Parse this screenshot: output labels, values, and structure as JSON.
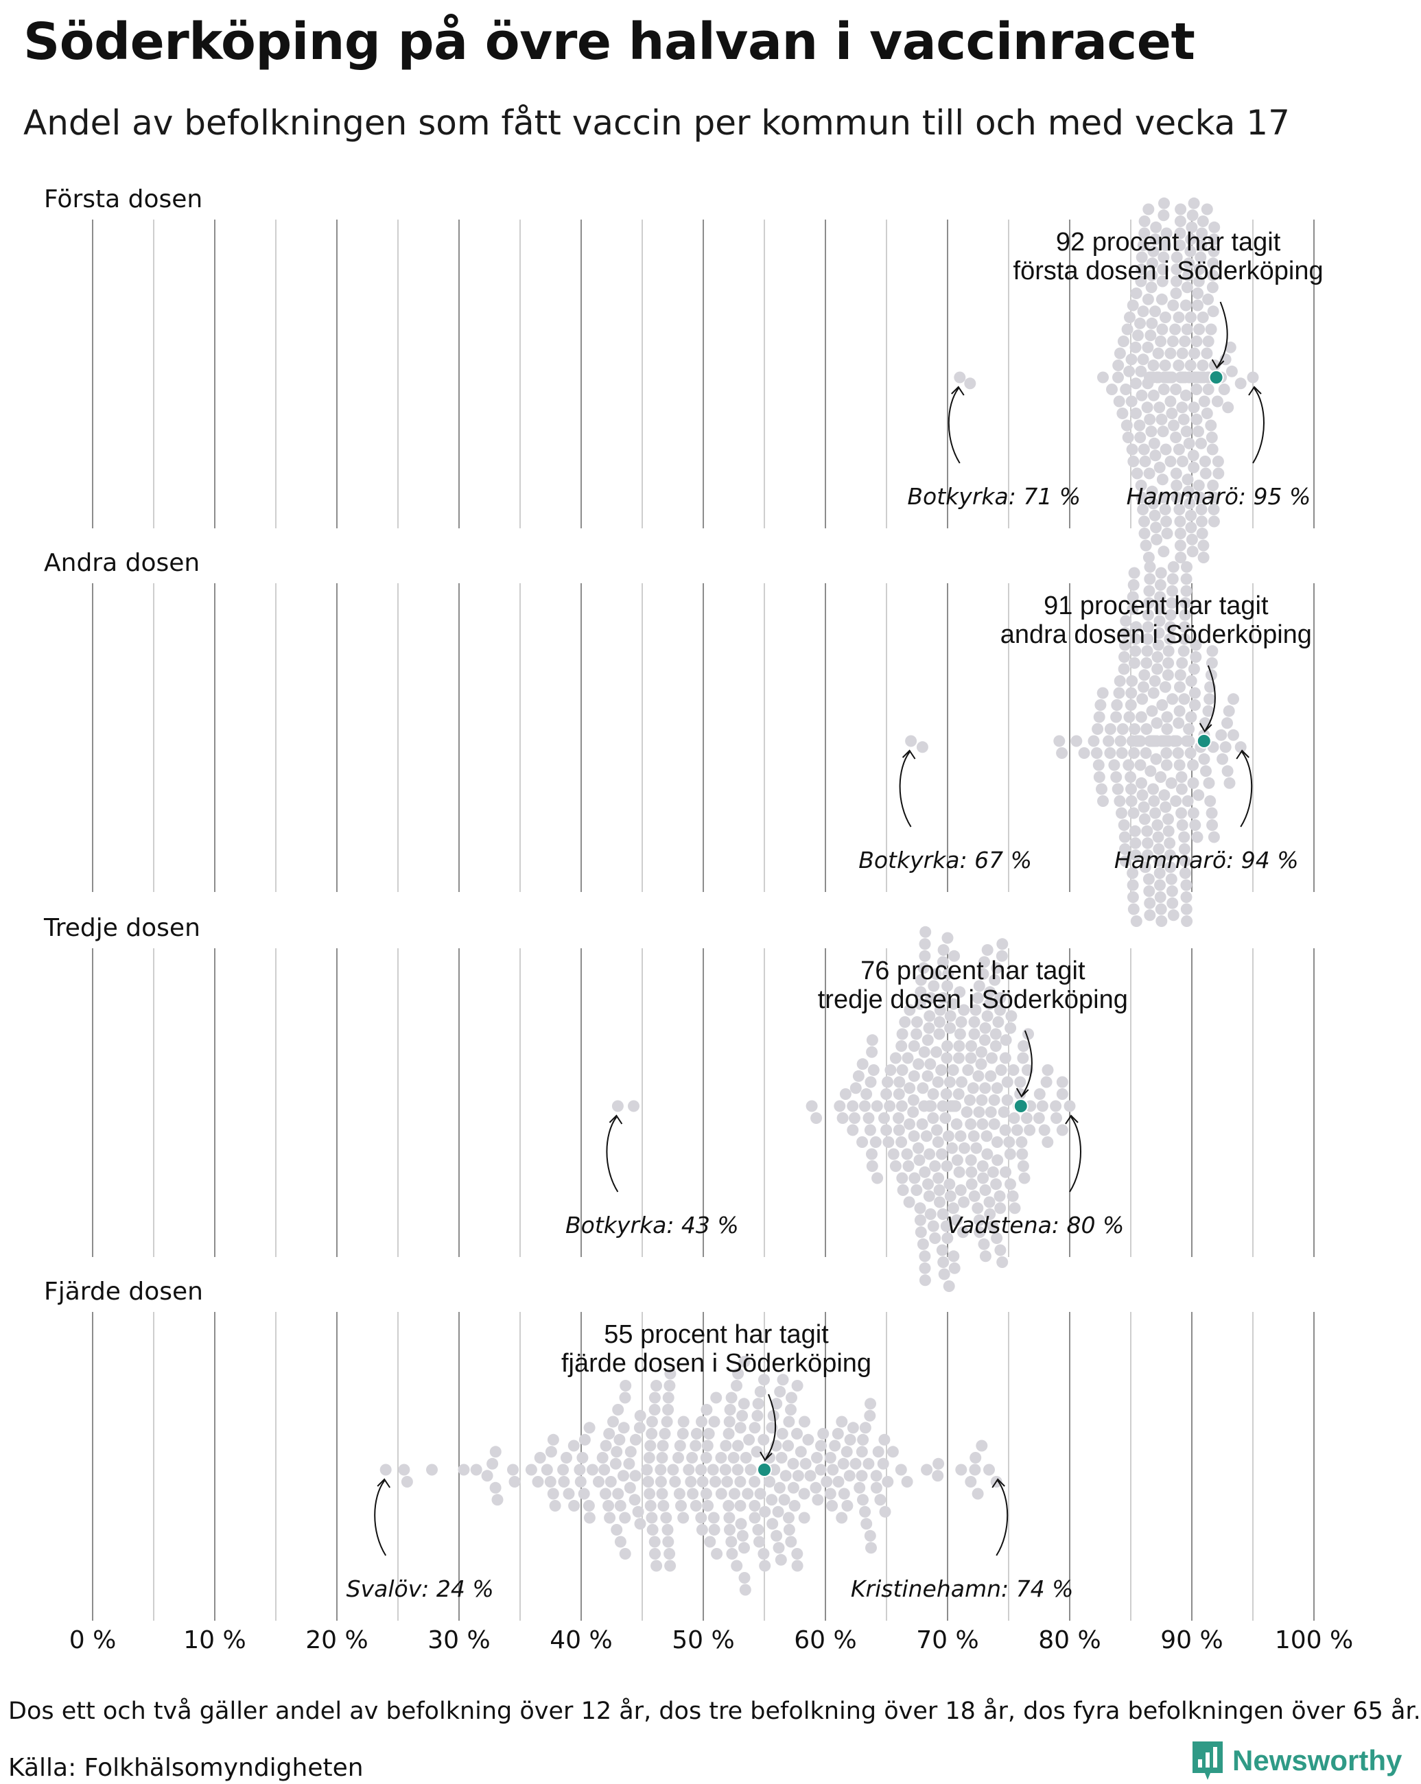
{
  "header": {
    "title": "Söderköping på övre halvan i vaccinracet",
    "subtitle": "Andel av befolkningen som fått vaccin per kommun till och med vecka 17"
  },
  "colors": {
    "dot": "#d5d4da",
    "highlight": "#1a8f80",
    "grid_major": "#8c8c8c",
    "grid_minor": "#bdbdbd",
    "text": "#111111",
    "brand": "#2f9a86"
  },
  "chart_data": {
    "type": "scatter",
    "subtype": "beeswarm",
    "x_axis": {
      "range": [
        0,
        100
      ],
      "ticks": [
        0,
        10,
        20,
        30,
        40,
        50,
        60,
        70,
        80,
        90,
        100
      ],
      "tick_labels": [
        "0 %",
        "10 %",
        "20 %",
        "30 %",
        "40 %",
        "50 %",
        "60 %",
        "70 %",
        "80 %",
        "90 %",
        "100 %"
      ],
      "minor_ticks": [
        5,
        15,
        25,
        35,
        45,
        55,
        65,
        75,
        85,
        95
      ]
    },
    "grid": true,
    "panels": [
      {
        "label": "Första dosen",
        "highlight": {
          "name": "Söderköping",
          "value": 92,
          "line1": "92 procent har tagit",
          "line2": "första dosen i Söderköping"
        },
        "min": {
          "name": "Botkyrka",
          "value": 71,
          "label": "Botkyrka: 71 %"
        },
        "max": {
          "name": "Hammarö",
          "value": 95,
          "label": "Hammarö: 95 %"
        },
        "distribution": {
          "center": 88.5,
          "spread": 2.2,
          "count": 290
        }
      },
      {
        "label": "Andra dosen",
        "highlight": {
          "name": "Söderköping",
          "value": 91,
          "line1": "91 procent har tagit",
          "line2": "andra dosen i Söderköping"
        },
        "min": {
          "name": "Botkyrka",
          "value": 67,
          "label": "Botkyrka: 67 %"
        },
        "max": {
          "name": "Hammarö",
          "value": 94,
          "label": "Hammarö: 94 %"
        },
        "distribution": {
          "center": 87.5,
          "spread": 2.4,
          "count": 290
        }
      },
      {
        "label": "Tredje dosen",
        "highlight": {
          "name": "Söderköping",
          "value": 76,
          "line1": "76 procent har tagit",
          "line2": "tredje dosen i Söderköping"
        },
        "min": {
          "name": "Botkyrka",
          "value": 43,
          "label": "Botkyrka: 43 %"
        },
        "max": {
          "name": "Vadstena",
          "value": 80,
          "label": "Vadstena: 80 %"
        },
        "distribution": {
          "center": 70,
          "spread": 4.2,
          "count": 290
        }
      },
      {
        "label": "Fjärde dosen",
        "highlight": {
          "name": "Söderköping",
          "value": 55,
          "line1": "55 procent har tagit",
          "line2": "fjärde dosen i Söderköping"
        },
        "min": {
          "name": "Svalöv",
          "value": 24,
          "label": "Svalöv: 24 %"
        },
        "max": {
          "name": "Kristinehamn",
          "value": 74,
          "label": "Kristinehamn: 74 %"
        },
        "distribution": {
          "center": 52,
          "spread": 8.5,
          "count": 290
        }
      }
    ]
  },
  "footer": {
    "note": "Dos ett och två gäller andel av befolkning över 12 år, dos tre befolkning över 18 år, dos fyra befolkningen över 65 år.",
    "source": "Källa: Folkhälsomyndigheten",
    "brand_name": "Newsworthy",
    "brand_icon": "bar-chart-icon"
  }
}
